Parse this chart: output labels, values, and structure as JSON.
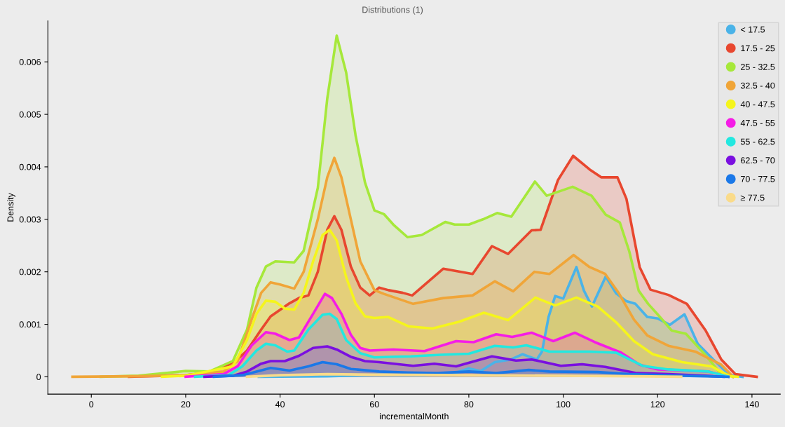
{
  "chart_data": {
    "type": "area",
    "title": "Distributions (1)",
    "xlabel": "incrementalMonth",
    "ylabel": "Density",
    "xlim": [
      -9.2,
      146
    ],
    "ylim": [
      -0.00033,
      0.00678
    ],
    "xticks": [
      0,
      20,
      40,
      60,
      80,
      100,
      120,
      140
    ],
    "yticks": [
      0,
      0.001,
      0.002,
      0.003,
      0.004,
      0.005,
      0.006
    ],
    "grid": false,
    "legend": "top right",
    "marker": "none",
    "line_style": "solid",
    "series": [
      {
        "name": "< 17.5",
        "color": "#4ab3e8",
        "x": [
          35.5,
          50,
          61,
          70.6,
          74.6,
          77.3,
          80,
          82.5,
          85.5,
          88.9,
          91.4,
          94.4,
          95.5,
          96.9,
          98.3,
          100,
          102.8,
          104.4,
          106.1,
          109,
          111.2,
          113.4,
          115.3,
          117.8,
          120.1,
          122.6,
          125.7,
          128.5,
          131.8,
          135.3,
          138
        ],
        "values": [
          0,
          1e-05,
          4e-05,
          3e-05,
          7e-05,
          8e-05,
          0.00016,
          0.00011,
          0.00028,
          0.00033,
          0.00043,
          0.00033,
          0.00048,
          0.00114,
          0.00154,
          0.00149,
          0.00209,
          0.00164,
          0.00134,
          0.00191,
          0.00159,
          0.00144,
          0.00139,
          0.00114,
          0.00111,
          0.00099,
          0.00119,
          0.00063,
          0.00033,
          3e-05,
          0
        ]
      },
      {
        "name": "17.5 - 25",
        "color": "#e8472f",
        "x": [
          8,
          20,
          25,
          28,
          30,
          33,
          36,
          38,
          42,
          44,
          46,
          48,
          50,
          51.5,
          53,
          55,
          57,
          59,
          61,
          63,
          66,
          68,
          74.6,
          80.8,
          84.9,
          88.3,
          93.3,
          95.2,
          98.9,
          102.1,
          105.6,
          108.1,
          111.5,
          113.4,
          116.2,
          118.5,
          122.3,
          126.2,
          130.2,
          133.5,
          136.5,
          141
        ],
        "values": [
          0,
          3e-05,
          8e-05,
          0.0002,
          0.00025,
          0.0005,
          0.0009,
          0.00115,
          0.0014,
          0.0015,
          0.00155,
          0.002,
          0.0028,
          0.00306,
          0.0028,
          0.0021,
          0.0017,
          0.00155,
          0.0017,
          0.00165,
          0.0016,
          0.00155,
          0.00206,
          0.00196,
          0.00249,
          0.00234,
          0.00279,
          0.0028,
          0.00375,
          0.00421,
          0.00395,
          0.0038,
          0.0038,
          0.00339,
          0.00209,
          0.00166,
          0.00156,
          0.00139,
          0.00088,
          0.00033,
          5e-05,
          0
        ]
      },
      {
        "name": "25 - 32.5",
        "color": "#a6e83a",
        "x": [
          2,
          10,
          20,
          25,
          30,
          33,
          35,
          37,
          39,
          43,
          45,
          48,
          50,
          52,
          54,
          56,
          58,
          60,
          62,
          64,
          67,
          70,
          72,
          75,
          77,
          80,
          83,
          86,
          89,
          94,
          96.5,
          102,
          106,
          109,
          112,
          114,
          116,
          118,
          120,
          123,
          126,
          130,
          133,
          136
        ],
        "values": [
          0,
          2e-05,
          0.00011,
          0.0001,
          0.0003,
          0.0009,
          0.0017,
          0.0021,
          0.0022,
          0.00218,
          0.0024,
          0.0036,
          0.0053,
          0.0065,
          0.0058,
          0.0046,
          0.0037,
          0.00317,
          0.0031,
          0.0029,
          0.00266,
          0.0027,
          0.0028,
          0.00295,
          0.0029,
          0.0029,
          0.003,
          0.00312,
          0.00305,
          0.00372,
          0.00345,
          0.00362,
          0.00345,
          0.00309,
          0.00294,
          0.00239,
          0.00164,
          0.00139,
          0.00119,
          0.00088,
          0.00082,
          0.00043,
          0.0001,
          0
        ]
      },
      {
        "name": "32.5 - 40",
        "color": "#f0a538",
        "x": [
          -4,
          10,
          20,
          28,
          31,
          34,
          36,
          38,
          40,
          43,
          45,
          48,
          50,
          51.5,
          53,
          55,
          57,
          60,
          62,
          68.2,
          74.6,
          80.8,
          85.5,
          89.4,
          93.9,
          97.1,
          102.2,
          105.6,
          108.9,
          111.8,
          115,
          117.8,
          122.3,
          128,
          133.5,
          136
        ],
        "values": [
          0,
          1e-05,
          3e-05,
          0.0001,
          0.0003,
          0.0011,
          0.0016,
          0.0018,
          0.00176,
          0.00168,
          0.002,
          0.003,
          0.0038,
          0.00417,
          0.0038,
          0.003,
          0.0022,
          0.00165,
          0.00158,
          0.00139,
          0.0015,
          0.00155,
          0.00182,
          0.00163,
          0.002,
          0.00196,
          0.00232,
          0.00209,
          0.00196,
          0.00159,
          0.00109,
          0.00079,
          0.00059,
          0.00048,
          0.00023,
          0
        ]
      },
      {
        "name": "40 - 47.5",
        "color": "#f5f51c",
        "x": [
          15,
          20,
          30,
          33,
          35,
          37,
          39,
          41,
          43,
          45,
          47,
          49,
          50.5,
          52,
          54,
          56,
          58,
          60,
          62.9,
          67.3,
          72.3,
          78,
          83.2,
          88.3,
          94.1,
          98.3,
          102.8,
          107.3,
          111.2,
          115,
          119,
          125.2,
          131.4,
          135.3,
          137
        ],
        "values": [
          0,
          2e-05,
          0.0002,
          0.0007,
          0.0012,
          0.00145,
          0.00143,
          0.0013,
          0.00128,
          0.0016,
          0.0022,
          0.0027,
          0.0028,
          0.0026,
          0.0019,
          0.0014,
          0.00115,
          0.00112,
          0.00114,
          0.00096,
          0.00092,
          0.00105,
          0.00122,
          0.00108,
          0.00151,
          0.00136,
          0.00151,
          0.00134,
          0.00104,
          0.00068,
          0.00043,
          0.00028,
          0.0002,
          1e-05,
          0
        ]
      },
      {
        "name": "47.5 - 55",
        "color": "#f51ce6",
        "x": [
          20,
          28,
          31,
          34,
          37,
          39,
          42,
          44,
          47,
          49.5,
          51,
          53,
          55,
          57,
          59,
          64,
          70.6,
          77.3,
          81,
          85.8,
          89.2,
          93.3,
          97.9,
          102.5,
          106.7,
          112.3,
          116.2,
          120.1,
          130.8,
          135
        ],
        "values": [
          0,
          5e-05,
          0.0002,
          0.0006,
          0.00085,
          0.00082,
          0.0007,
          0.00075,
          0.0012,
          0.00158,
          0.0015,
          0.0012,
          0.0008,
          0.00055,
          0.0005,
          0.00052,
          0.00049,
          0.00068,
          0.00066,
          0.00081,
          0.00076,
          0.00084,
          0.00068,
          0.00084,
          0.00066,
          0.00046,
          0.00023,
          0.00014,
          0.0001,
          0
        ]
      },
      {
        "name": "55 - 62.5",
        "color": "#22e8e0",
        "x": [
          22,
          29,
          32,
          35,
          37,
          39,
          41.5,
          43,
          46,
          49,
          50.5,
          52,
          54,
          57,
          60,
          63,
          67.7,
          74,
          80,
          85.5,
          89.4,
          92.2,
          97.1,
          105.6,
          111.2,
          116.8,
          122.3,
          130.8,
          135
        ],
        "values": [
          0,
          3e-05,
          0.0002,
          0.0005,
          0.00063,
          0.0006,
          0.00048,
          0.0005,
          0.0009,
          0.00118,
          0.0012,
          0.0011,
          0.0007,
          0.00045,
          0.00037,
          0.00038,
          0.00039,
          0.00042,
          0.00044,
          0.00059,
          0.00056,
          0.0006,
          0.00048,
          0.00048,
          0.00046,
          0.00021,
          0.00014,
          0.0001,
          0
        ]
      },
      {
        "name": "62.5 - 70",
        "color": "#7a0fe0",
        "x": [
          24,
          30,
          33,
          36,
          38,
          41,
          44,
          47,
          50,
          52,
          55,
          58,
          61,
          68.2,
          72.7,
          77.3,
          84.9,
          90,
          93.3,
          99.5,
          104,
          108.9,
          115.6,
          122.3,
          130,
          134
        ],
        "values": [
          0,
          2e-05,
          0.0001,
          0.00025,
          0.0003,
          0.0003,
          0.0004,
          0.00055,
          0.00058,
          0.00052,
          0.00038,
          0.0003,
          0.00028,
          0.00021,
          0.00025,
          0.0002,
          0.00039,
          0.00031,
          0.00033,
          0.00021,
          0.00024,
          0.00019,
          7e-05,
          5e-05,
          2e-05,
          0
        ]
      },
      {
        "name": "70 - 77.5",
        "color": "#1a78e8",
        "x": [
          26,
          32,
          35,
          38,
          42,
          46,
          49,
          52,
          55,
          61,
          67,
          73.3,
          80,
          85.8,
          92.7,
          97.1,
          107.3,
          114,
          125,
          135
        ],
        "values": [
          0,
          3e-05,
          0.0001,
          0.00017,
          0.00012,
          0.0002,
          0.00028,
          0.00024,
          0.00015,
          0.0001,
          8e-05,
          7e-05,
          0.0001,
          7e-05,
          0.00013,
          0.0001,
          9e-05,
          5e-05,
          2e-05,
          0
        ]
      },
      {
        "name": "≥ 77.5",
        "color": "#fadb8a",
        "x": [
          33,
          40,
          50,
          60,
          80,
          100,
          115,
          125
        ],
        "values": [
          0,
          3e-05,
          5e-05,
          4e-05,
          3e-05,
          2e-05,
          1e-05,
          0
        ]
      }
    ]
  }
}
